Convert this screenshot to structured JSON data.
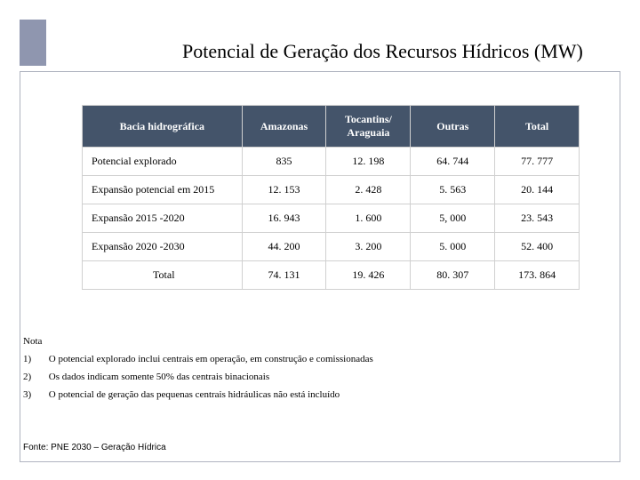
{
  "title": "Potencial de Geração dos Recursos Hídricos (MW)",
  "table": {
    "header": {
      "basin": "Bacia hidrográfica",
      "amazonas": "Amazonas",
      "tocantins": "Tocantins/\nAraguaia",
      "outras": "Outras",
      "total": "Total"
    },
    "rows": [
      {
        "label": "Potencial explorado",
        "amazonas": "835",
        "tocantins": "12. 198",
        "outras": "64. 744",
        "total": "77. 777"
      },
      {
        "label": "Expansão potencial em 2015",
        "amazonas": "12. 153",
        "tocantins": "2. 428",
        "outras": "5. 563",
        "total": "20. 144"
      },
      {
        "label": "Expansão 2015 -2020",
        "amazonas": "16. 943",
        "tocantins": "1. 600",
        "outras": "5, 000",
        "total": "23. 543"
      },
      {
        "label": "Expansão 2020 -2030",
        "amazonas": "44. 200",
        "tocantins": "3. 200",
        "outras": "5. 000",
        "total": "52. 400"
      },
      {
        "label": "Total",
        "amazonas": "74. 131",
        "tocantins": "19. 426",
        "outras": "80. 307",
        "total": "173. 864"
      }
    ]
  },
  "notes": {
    "label": "Nota",
    "items": [
      {
        "num": "1)",
        "text": "O potencial explorado inclui centrais em operação, em construção e comissionadas"
      },
      {
        "num": "2)",
        "text": "Os dados indicam somente 50% das centrais binacionais"
      },
      {
        "num": "3)",
        "text": "O potencial de geração das pequenas centrais hidráulicas não está incluído"
      }
    ]
  },
  "source": "Fonte:  PNE 2030 – Geração Hídrica",
  "colors": {
    "header_bg": "#44546a",
    "header_fg": "#ffffff",
    "border": "#d0d0d0",
    "leftbar": "#8f96af"
  }
}
